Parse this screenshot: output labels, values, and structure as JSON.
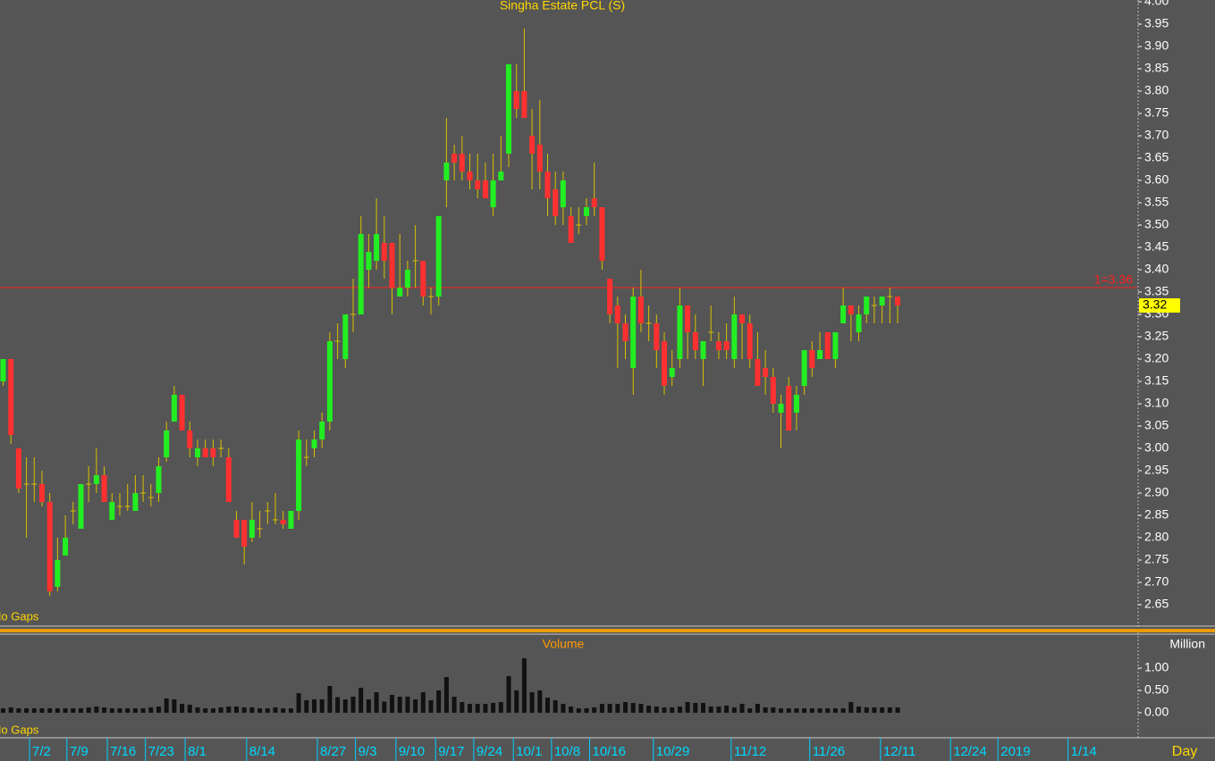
{
  "chart_data": [
    {
      "type": "candlestick",
      "title": "Singha Estate PCL (S)",
      "annotation": "No Gaps",
      "x_unit_label": "Day",
      "x": [
        0,
        1,
        2,
        3,
        4,
        5,
        6,
        7,
        8,
        9,
        10,
        11,
        12,
        13,
        14,
        15,
        16,
        17,
        18,
        19,
        20,
        21,
        22,
        23,
        24,
        25,
        26,
        27,
        28,
        29,
        30,
        31,
        32,
        33,
        34,
        35,
        36,
        37,
        38,
        39,
        40,
        41,
        42,
        43,
        44,
        45,
        46,
        47,
        48,
        49,
        50,
        51,
        52,
        53,
        54,
        55,
        56,
        57,
        58,
        59,
        60,
        61,
        62,
        63,
        64,
        65,
        66,
        67,
        68,
        69,
        70,
        71,
        72,
        73,
        74,
        75,
        76,
        77,
        78,
        79,
        80,
        81,
        82,
        83,
        84,
        85,
        86,
        87,
        88,
        89,
        90,
        91,
        92,
        93,
        94,
        95,
        96,
        97,
        98,
        99,
        100,
        101,
        102,
        103,
        104,
        105,
        106,
        107,
        108,
        109,
        110,
        111,
        112,
        113,
        114,
        115
      ],
      "open": [
        3.15,
        3.2,
        3.0,
        2.92,
        2.92,
        2.92,
        2.88,
        2.69,
        2.76,
        2.86,
        2.82,
        2.92,
        2.92,
        2.94,
        2.84,
        2.87,
        2.87,
        2.86,
        2.9,
        2.89,
        2.9,
        2.98,
        3.06,
        3.12,
        3.04,
        2.98,
        3.0,
        3.0,
        3.0,
        2.98,
        2.84,
        2.84,
        2.8,
        2.82,
        2.86,
        2.84,
        2.84,
        2.82,
        2.86,
        2.98,
        3.0,
        3.02,
        3.06,
        3.24,
        3.2,
        3.3,
        3.3,
        3.4,
        3.42,
        3.46,
        3.46,
        3.34,
        3.36,
        3.42,
        3.42,
        3.34,
        3.34,
        3.6,
        3.66,
        3.66,
        3.62,
        3.6,
        3.6,
        3.54,
        3.6,
        3.66,
        3.8,
        3.8,
        3.7,
        3.68,
        3.62,
        3.58,
        3.54,
        3.52,
        3.5,
        3.52,
        3.56,
        3.54,
        3.38,
        3.32,
        3.28,
        3.18,
        3.34,
        3.28,
        3.28,
        3.24,
        3.16,
        3.2,
        3.32,
        3.26,
        3.2,
        3.26,
        3.24,
        3.24,
        3.2,
        3.3,
        3.28,
        3.2,
        3.18,
        3.16,
        3.08,
        3.14,
        3.08,
        3.14,
        3.22,
        3.2,
        3.26,
        3.2,
        3.28,
        3.32,
        3.26,
        3.3,
        3.32,
        3.32,
        3.34,
        3.34
      ],
      "high": [
        3.2,
        3.2,
        3.0,
        2.98,
        2.98,
        2.95,
        2.9,
        2.8,
        2.85,
        2.88,
        2.92,
        2.96,
        3.0,
        2.96,
        2.9,
        2.9,
        2.92,
        2.94,
        2.94,
        2.92,
        2.98,
        3.06,
        3.14,
        3.12,
        3.06,
        3.02,
        3.02,
        3.02,
        3.02,
        3.0,
        2.86,
        2.84,
        2.88,
        2.86,
        2.88,
        2.9,
        2.86,
        2.86,
        3.04,
        3.02,
        3.04,
        3.08,
        3.26,
        3.28,
        3.3,
        3.38,
        3.52,
        3.48,
        3.56,
        3.52,
        3.46,
        3.48,
        3.42,
        3.5,
        3.42,
        3.36,
        3.52,
        3.74,
        3.68,
        3.7,
        3.66,
        3.66,
        3.64,
        3.66,
        3.7,
        3.86,
        3.86,
        3.94,
        3.76,
        3.78,
        3.66,
        3.62,
        3.62,
        3.54,
        3.54,
        3.56,
        3.64,
        3.54,
        3.38,
        3.34,
        3.3,
        3.36,
        3.4,
        3.32,
        3.3,
        3.26,
        3.22,
        3.36,
        3.32,
        3.3,
        3.24,
        3.32,
        3.26,
        3.28,
        3.34,
        3.3,
        3.3,
        3.26,
        3.22,
        3.18,
        3.12,
        3.16,
        3.14,
        3.22,
        3.24,
        3.26,
        3.26,
        3.26,
        3.36,
        3.32,
        3.32,
        3.34,
        3.34,
        3.34,
        3.36,
        3.34
      ],
      "low": [
        3.14,
        3.01,
        2.9,
        2.8,
        2.88,
        2.87,
        2.67,
        2.68,
        2.76,
        2.83,
        2.82,
        2.88,
        2.9,
        2.88,
        2.84,
        2.85,
        2.86,
        2.86,
        2.88,
        2.87,
        2.88,
        2.97,
        3.06,
        3.04,
        2.98,
        2.96,
        2.98,
        2.96,
        2.98,
        2.88,
        2.8,
        2.74,
        2.79,
        2.8,
        2.83,
        2.83,
        2.82,
        2.82,
        2.84,
        2.96,
        2.98,
        3.0,
        3.04,
        3.2,
        3.18,
        3.26,
        3.3,
        3.36,
        3.4,
        3.38,
        3.3,
        3.34,
        3.34,
        3.36,
        3.32,
        3.3,
        3.32,
        3.54,
        3.6,
        3.6,
        3.58,
        3.56,
        3.56,
        3.52,
        3.6,
        3.63,
        3.74,
        3.74,
        3.58,
        3.58,
        3.52,
        3.5,
        3.5,
        3.46,
        3.48,
        3.5,
        3.52,
        3.4,
        3.28,
        3.18,
        3.2,
        3.12,
        3.26,
        3.24,
        3.18,
        3.12,
        3.14,
        3.18,
        3.2,
        3.2,
        3.14,
        3.24,
        3.2,
        3.2,
        3.18,
        3.2,
        3.18,
        3.14,
        3.12,
        3.08,
        3.0,
        3.04,
        3.04,
        3.12,
        3.16,
        3.2,
        3.2,
        3.18,
        3.28,
        3.24,
        3.24,
        3.28,
        3.28,
        3.28,
        3.28,
        3.28
      ],
      "close": [
        3.2,
        3.03,
        2.91,
        2.92,
        2.92,
        2.88,
        2.68,
        2.75,
        2.8,
        2.86,
        2.92,
        2.92,
        2.94,
        2.88,
        2.88,
        2.87,
        2.87,
        2.9,
        2.9,
        2.89,
        2.96,
        3.04,
        3.12,
        3.04,
        3.0,
        3.0,
        2.98,
        2.98,
        3.0,
        2.88,
        2.8,
        2.78,
        2.84,
        2.82,
        2.86,
        2.84,
        2.83,
        2.86,
        3.02,
        2.98,
        3.02,
        3.06,
        3.24,
        3.24,
        3.3,
        3.3,
        3.48,
        3.44,
        3.48,
        3.42,
        3.36,
        3.36,
        3.4,
        3.42,
        3.34,
        3.34,
        3.52,
        3.64,
        3.64,
        3.62,
        3.6,
        3.58,
        3.56,
        3.6,
        3.62,
        3.86,
        3.76,
        3.74,
        3.66,
        3.62,
        3.56,
        3.52,
        3.6,
        3.46,
        3.5,
        3.54,
        3.54,
        3.42,
        3.3,
        3.28,
        3.24,
        3.34,
        3.28,
        3.28,
        3.22,
        3.14,
        3.18,
        3.32,
        3.26,
        3.22,
        3.24,
        3.26,
        3.22,
        3.22,
        3.3,
        3.28,
        3.2,
        3.14,
        3.16,
        3.1,
        3.1,
        3.04,
        3.12,
        3.22,
        3.18,
        3.22,
        3.2,
        3.26,
        3.32,
        3.3,
        3.3,
        3.34,
        3.32,
        3.34,
        3.34,
        3.32
      ],
      "up_color": "#22ee22",
      "down_color": "#ff3030",
      "wick_color": "#d8c000",
      "xlim": [
        -0.4,
        145.8
      ],
      "xticks": [
        {
          "value": 3.4,
          "label": "7/2"
        },
        {
          "value": 8.2,
          "label": "7/9"
        },
        {
          "value": 13.4,
          "label": "7/16"
        },
        {
          "value": 18.3,
          "label": "7/23"
        },
        {
          "value": 23.4,
          "label": "8/1"
        },
        {
          "value": 31.3,
          "label": "8/14"
        },
        {
          "value": 40.4,
          "label": "8/27"
        },
        {
          "value": 45.3,
          "label": "9/3"
        },
        {
          "value": 50.5,
          "label": "9/10"
        },
        {
          "value": 55.6,
          "label": "9/17"
        },
        {
          "value": 60.5,
          "label": "9/24"
        },
        {
          "value": 65.6,
          "label": "10/1"
        },
        {
          "value": 70.5,
          "label": "10/8"
        },
        {
          "value": 75.4,
          "label": "10/16"
        },
        {
          "value": 83.6,
          "label": "10/29"
        },
        {
          "value": 93.6,
          "label": "11/12"
        },
        {
          "value": 103.7,
          "label": "11/26"
        },
        {
          "value": 112.8,
          "label": "12/11"
        },
        {
          "value": 121.8,
          "label": "12/24"
        },
        {
          "value": 127.9,
          "label": "2019"
        },
        {
          "value": 136.9,
          "label": "1/14"
        }
      ],
      "ylim": [
        2.604,
        4.004
      ],
      "yticks": [
        {
          "value": 4.0,
          "label": "4.00"
        },
        {
          "value": 3.95,
          "label": "3.95"
        },
        {
          "value": 3.9,
          "label": "3.90"
        },
        {
          "value": 3.85,
          "label": "3.85"
        },
        {
          "value": 3.8,
          "label": "3.80"
        },
        {
          "value": 3.75,
          "label": "3.75"
        },
        {
          "value": 3.7,
          "label": "3.70"
        },
        {
          "value": 3.65,
          "label": "3.65"
        },
        {
          "value": 3.6,
          "label": "3.60"
        },
        {
          "value": 3.55,
          "label": "3.55"
        },
        {
          "value": 3.5,
          "label": "3.50"
        },
        {
          "value": 3.45,
          "label": "3.45"
        },
        {
          "value": 3.4,
          "label": "3.40"
        },
        {
          "value": 3.35,
          "label": "3.35"
        },
        {
          "value": 3.3,
          "label": "3.30"
        },
        {
          "value": 3.25,
          "label": "3.25"
        },
        {
          "value": 3.2,
          "label": "3.20"
        },
        {
          "value": 3.15,
          "label": "3.15"
        },
        {
          "value": 3.1,
          "label": "3.10"
        },
        {
          "value": 3.05,
          "label": "3.05"
        },
        {
          "value": 3.0,
          "label": "3.00"
        },
        {
          "value": 2.95,
          "label": "2.95"
        },
        {
          "value": 2.9,
          "label": "2.90"
        },
        {
          "value": 2.85,
          "label": "2.85"
        },
        {
          "value": 2.8,
          "label": "2.80"
        },
        {
          "value": 2.75,
          "label": "2.75"
        },
        {
          "value": 2.7,
          "label": "2.70"
        },
        {
          "value": 2.65,
          "label": "2.65"
        }
      ],
      "hline": {
        "value": 3.36,
        "label": "1=3.36",
        "color": "#ff2020"
      },
      "last_price": 3.32
    },
    {
      "type": "bar",
      "title": "Volume",
      "unit_label": "Million",
      "annotation": "No Gaps",
      "color": "#111111",
      "values": [
        0.1,
        0.12,
        0.1,
        0.1,
        0.1,
        0.1,
        0.1,
        0.1,
        0.1,
        0.1,
        0.1,
        0.12,
        0.14,
        0.12,
        0.1,
        0.1,
        0.1,
        0.1,
        0.1,
        0.12,
        0.14,
        0.32,
        0.3,
        0.2,
        0.18,
        0.12,
        0.1,
        0.1,
        0.12,
        0.14,
        0.14,
        0.12,
        0.12,
        0.1,
        0.1,
        0.12,
        0.1,
        0.1,
        0.44,
        0.28,
        0.3,
        0.3,
        0.6,
        0.35,
        0.3,
        0.36,
        0.56,
        0.3,
        0.46,
        0.25,
        0.4,
        0.36,
        0.36,
        0.3,
        0.46,
        0.28,
        0.5,
        0.8,
        0.36,
        0.24,
        0.2,
        0.2,
        0.2,
        0.22,
        0.24,
        0.82,
        0.5,
        1.22,
        0.46,
        0.5,
        0.34,
        0.28,
        0.2,
        0.14,
        0.1,
        0.1,
        0.12,
        0.2,
        0.2,
        0.2,
        0.24,
        0.22,
        0.2,
        0.16,
        0.14,
        0.12,
        0.12,
        0.14,
        0.24,
        0.22,
        0.22,
        0.14,
        0.14,
        0.16,
        0.12,
        0.2,
        0.1,
        0.2,
        0.12,
        0.12,
        0.1,
        0.1,
        0.1,
        0.1,
        0.1,
        0.1,
        0.1,
        0.1,
        0.1,
        0.24,
        0.14,
        0.12,
        0.12,
        0.12,
        0.12,
        0.12
      ],
      "ylim": [
        -0.56,
        1.72
      ],
      "yticks": [
        {
          "value": 1.0,
          "label": "1.00"
        },
        {
          "value": 0.5,
          "label": "0.50"
        },
        {
          "value": 0.0,
          "label": "0.00"
        }
      ]
    }
  ]
}
